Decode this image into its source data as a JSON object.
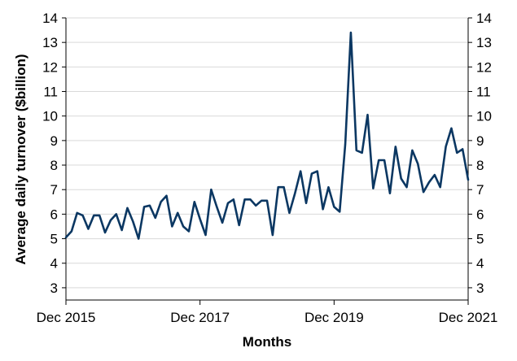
{
  "chart_data": {
    "type": "line",
    "title": "",
    "xlabel": "Months",
    "ylabel": "Average daily turnover ($billion)",
    "x_tick_labels": [
      "Dec 2015",
      "Dec 2017",
      "Dec 2019",
      "Dec 2021"
    ],
    "x_tick_months": [
      "2015-12",
      "2017-12",
      "2019-12",
      "2021-12"
    ],
    "y_ticks": [
      3,
      4,
      5,
      6,
      7,
      8,
      9,
      10,
      11,
      12,
      13,
      14
    ],
    "ylim": [
      2.5,
      14
    ],
    "grid": "horizontal",
    "right_axis": true,
    "line_color": "#0b3762",
    "grid_color": "#d9d9d9",
    "series": [
      {
        "x": [
          "2015-12",
          "2016-01",
          "2016-02",
          "2016-03",
          "2016-04",
          "2016-05",
          "2016-06",
          "2016-07",
          "2016-08",
          "2016-09",
          "2016-10",
          "2016-11",
          "2016-12",
          "2017-01",
          "2017-02",
          "2017-03",
          "2017-04",
          "2017-05",
          "2017-06",
          "2017-07",
          "2017-08",
          "2017-09",
          "2017-10",
          "2017-11",
          "2017-12",
          "2018-01",
          "2018-02",
          "2018-03",
          "2018-04",
          "2018-05",
          "2018-06",
          "2018-07",
          "2018-08",
          "2018-09",
          "2018-10",
          "2018-11",
          "2018-12",
          "2019-01",
          "2019-02",
          "2019-03",
          "2019-04",
          "2019-05",
          "2019-06",
          "2019-07",
          "2019-08",
          "2019-09",
          "2019-10",
          "2019-11",
          "2019-12",
          "2020-01",
          "2020-02",
          "2020-03",
          "2020-04",
          "2020-05",
          "2020-06",
          "2020-07",
          "2020-08",
          "2020-09",
          "2020-10",
          "2020-11",
          "2020-12",
          "2021-01",
          "2021-02",
          "2021-03",
          "2021-04",
          "2021-05",
          "2021-06",
          "2021-07",
          "2021-08",
          "2021-09",
          "2021-10",
          "2021-11",
          "2021-12"
        ],
        "values": [
          5.05,
          5.3,
          6.05,
          5.95,
          5.4,
          5.95,
          5.95,
          5.25,
          5.75,
          6.0,
          5.35,
          6.25,
          5.7,
          5.0,
          6.3,
          6.35,
          5.85,
          6.5,
          6.75,
          5.5,
          6.05,
          5.5,
          5.3,
          6.5,
          5.8,
          5.15,
          7.0,
          6.3,
          5.65,
          6.45,
          6.6,
          5.55,
          6.6,
          6.6,
          6.35,
          6.55,
          6.55,
          5.15,
          7.1,
          7.1,
          6.05,
          6.85,
          7.75,
          6.45,
          7.65,
          7.75,
          6.2,
          7.1,
          6.3,
          6.1,
          8.85,
          13.4,
          8.6,
          8.5,
          10.05,
          7.05,
          8.2,
          8.2,
          6.85,
          8.75,
          7.45,
          7.1,
          8.6,
          8.05,
          6.9,
          7.3,
          7.6,
          7.1,
          8.75,
          9.5,
          8.5,
          8.65,
          7.4
        ]
      }
    ]
  }
}
